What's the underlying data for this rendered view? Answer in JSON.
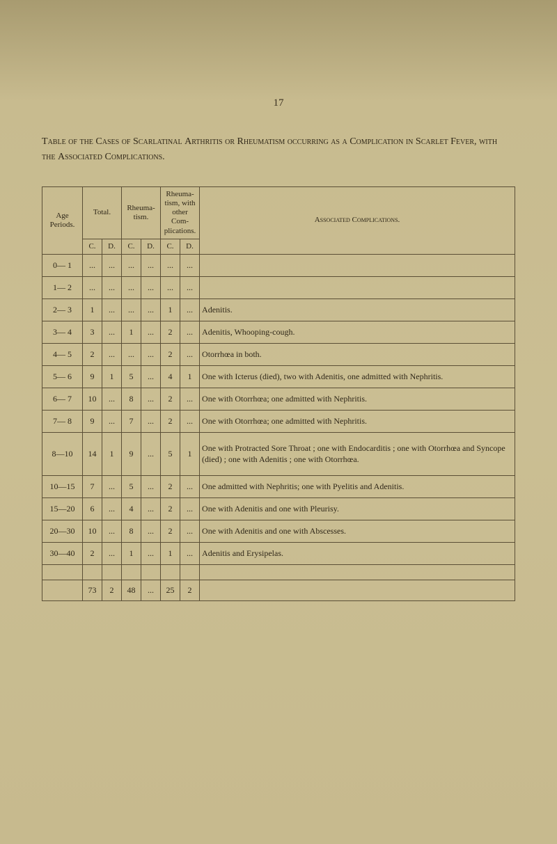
{
  "page_number": "17",
  "title_html": "Table of the Cases of Scarlatinal Arthritis or Rheumatism occurring as a Complication in Scarlet Fever, with the Associated Complications.",
  "headers": {
    "age": "Age Periods.",
    "total": "Total.",
    "rheuma": "Rheuma-tism.",
    "rheuma_other": "Rheuma-tism, with other Com-plications.",
    "assoc": "Associated Complications.",
    "C": "C.",
    "D": "D."
  },
  "rows": [
    {
      "age": "0— 1",
      "tc": "...",
      "td": "...",
      "rc": "...",
      "rd": "...",
      "oc": "...",
      "od": "...",
      "desc": ""
    },
    {
      "age": "1— 2",
      "tc": "...",
      "td": "...",
      "rc": "...",
      "rd": "...",
      "oc": "...",
      "od": "...",
      "desc": ""
    },
    {
      "age": "2— 3",
      "tc": "1",
      "td": "...",
      "rc": "...",
      "rd": "...",
      "oc": "1",
      "od": "...",
      "desc": "Adenitis."
    },
    {
      "age": "3— 4",
      "tc": "3",
      "td": "...",
      "rc": "1",
      "rd": "...",
      "oc": "2",
      "od": "...",
      "desc": "Adenitis, Whooping-cough."
    },
    {
      "age": "4— 5",
      "tc": "2",
      "td": "...",
      "rc": "...",
      "rd": "...",
      "oc": "2",
      "od": "...",
      "desc": "Otorrhœa in both."
    },
    {
      "age": "5— 6",
      "tc": "9",
      "td": "1",
      "rc": "5",
      "rd": "...",
      "oc": "4",
      "od": "1",
      "desc": "One with Icterus (died), two with Adenitis, one admitted with Nephritis."
    },
    {
      "age": "6— 7",
      "tc": "10",
      "td": "...",
      "rc": "8",
      "rd": "...",
      "oc": "2",
      "od": "...",
      "desc": "One with Otorrhœa; one admitted with Nephritis."
    },
    {
      "age": "7— 8",
      "tc": "9",
      "td": "...",
      "rc": "7",
      "rd": "...",
      "oc": "2",
      "od": "...",
      "desc": "One with Otorrhœa; one admitted with Nephritis."
    },
    {
      "age": "8—10",
      "tc": "14",
      "td": "1",
      "rc": "9",
      "rd": "...",
      "oc": "5",
      "od": "1",
      "desc": "One with Protracted Sore Throat ; one with Endocarditis ; one with Otorrhœa and Syncope (died) ; one with Adenitis ; one with Otorrhœa.",
      "tall": true
    },
    {
      "age": "10—15",
      "tc": "7",
      "td": "...",
      "rc": "5",
      "rd": "...",
      "oc": "2",
      "od": "...",
      "desc": "One admitted with Nephritis; one with Pyelitis and Adenitis."
    },
    {
      "age": "15—20",
      "tc": "6",
      "td": "...",
      "rc": "4",
      "rd": "...",
      "oc": "2",
      "od": "...",
      "desc": "One with Adenitis and one with Pleurisy."
    },
    {
      "age": "20—30",
      "tc": "10",
      "td": "...",
      "rc": "8",
      "rd": "...",
      "oc": "2",
      "od": "...",
      "desc": "One with Adenitis and one with Abscesses."
    },
    {
      "age": "30—40",
      "tc": "2",
      "td": "...",
      "rc": "1",
      "rd": "...",
      "oc": "1",
      "od": "...",
      "desc": "Adenitis and Erysipelas."
    }
  ],
  "totals": {
    "age": "",
    "tc": "73",
    "td": "2",
    "rc": "48",
    "rd": "...",
    "oc": "25",
    "od": "2",
    "desc": ""
  }
}
